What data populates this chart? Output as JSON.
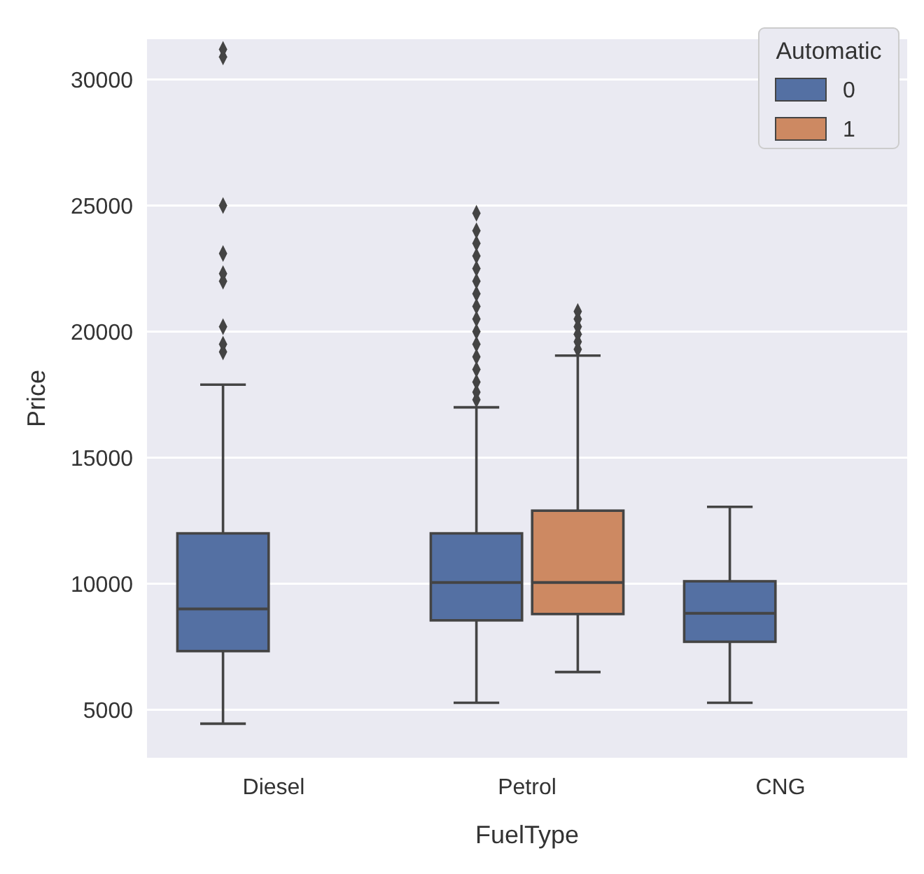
{
  "chart_data": {
    "type": "box",
    "xlabel": "FuelType",
    "ylabel": "Price",
    "legend_title": "Automatic",
    "categories": [
      "Diesel",
      "Petrol",
      "CNG"
    ],
    "series": [
      {
        "name": "0",
        "color": "#5470a3",
        "boxes": [
          {
            "low": 4450,
            "q1": 7330,
            "median": 9000,
            "q3": 12000,
            "high": 17900,
            "outliers": [
              19200,
              19500,
              20200,
              22000,
              22300,
              23100,
              25000,
              30900,
              31200
            ]
          },
          {
            "low": 5280,
            "q1": 8550,
            "median": 10050,
            "q3": 12000,
            "high": 17000,
            "outliers": [
              17300,
              17600,
              18000,
              18500,
              19000,
              19500,
              20000,
              20500,
              21000,
              21500,
              22000,
              22500,
              23000,
              23500,
              24000,
              24700
            ]
          },
          {
            "low": 5280,
            "q1": 7700,
            "median": 8830,
            "q3": 10100,
            "high": 13050
          }
        ]
      },
      {
        "name": "1",
        "color": "#cd8962",
        "boxes": [
          null,
          {
            "low": 6500,
            "q1": 8800,
            "median": 10050,
            "q3": 12900,
            "high": 19050,
            "outliers": [
              19300,
              19600,
              19900,
              20200,
              20500,
              20800
            ]
          },
          null
        ]
      }
    ],
    "ylim": [
      3100,
      31600
    ],
    "yticks": [
      5000,
      10000,
      15000,
      20000,
      25000,
      30000
    ],
    "grid": "y",
    "legend": "top right"
  }
}
